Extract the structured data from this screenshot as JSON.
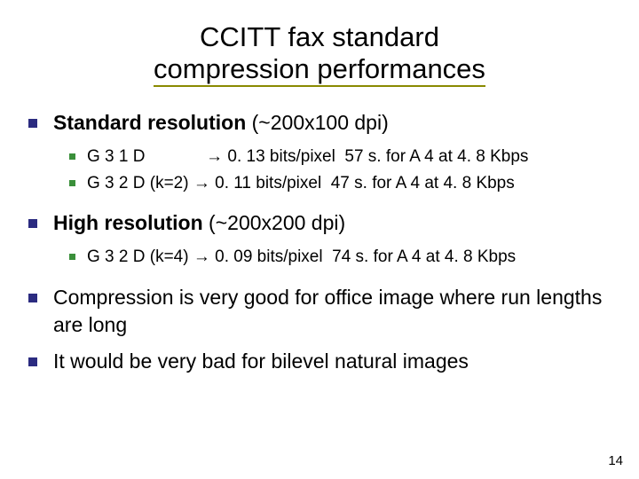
{
  "title_line1": "CCITT fax standard",
  "title_line2": "compression performances",
  "bullets": {
    "b1": {
      "label": "Standard resolution",
      "detail": " (~200x100 dpi)"
    },
    "b1_1": "G 3 1 D             → 0. 13 bits/pixel  57 s. for A 4 at 4. 8 Kbps",
    "b1_2": "G 3 2 D (k=2) → 0. 11 bits/pixel  47 s. for A 4 at 4. 8 Kbps",
    "b2": {
      "label": "High resolution",
      "detail": " (~200x200 dpi)"
    },
    "b2_1": "G 3 2 D (k=4) → 0. 09 bits/pixel  74 s. for A 4 at 4. 8 Kbps",
    "b3": "Compression is very good for office image where run lengths are long",
    "b4": "It would be very bad for bilevel natural images"
  },
  "page_number": "14",
  "colors": {
    "title_underline": "#8a8a00",
    "bullet_l1": "#2b2b80",
    "bullet_l2": "#3a8f3a",
    "text": "#000000",
    "background": "#ffffff"
  },
  "typography": {
    "title_fontsize_pt": 24,
    "l1_fontsize_pt": 18,
    "l2_fontsize_pt": 15,
    "pagenum_fontsize_pt": 12,
    "font_family": "Verdana"
  }
}
